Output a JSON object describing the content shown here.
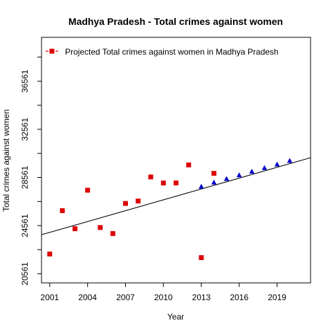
{
  "chart_data": {
    "type": "scatter",
    "title": "Madhya Pradesh  -  Total crimes against women",
    "xlabel": "Year",
    "ylabel": "Total crimes against women",
    "xlim": [
      2000.35,
      2021.65
    ],
    "ylim": [
      19800,
      40200
    ],
    "x_ticks": [
      2001,
      2004,
      2007,
      2010,
      2013,
      2016,
      2019
    ],
    "y_ticks": [
      20561,
      24561,
      28561,
      32561,
      36561
    ],
    "legend": {
      "position": "top-left",
      "entries": [
        "Projected  Total crimes against women  in  Madhya Pradesh"
      ]
    },
    "colors": {
      "observed": "#dd0000",
      "projected": "#0000cc",
      "trend": "#000000"
    },
    "series": [
      {
        "name": "Projected  Total crimes against women  in  Madhya Pradesh",
        "marker": "square",
        "x": [
          2001,
          2002,
          2003,
          2004,
          2005,
          2006,
          2007,
          2008,
          2009,
          2010,
          2011,
          2012,
          2013,
          2014
        ],
        "y": [
          22200,
          25800,
          24300,
          27500,
          24400,
          23900,
          26400,
          26600,
          28600,
          28100,
          28100,
          29600,
          21900,
          28900
        ]
      },
      {
        "marker": "triangle",
        "x": [
          2013,
          2014,
          2015,
          2016,
          2017,
          2018,
          2019,
          2020
        ],
        "y": [
          27800,
          28150,
          28450,
          28750,
          29050,
          29350,
          29650,
          29950
        ]
      }
    ],
    "trendline": {
      "x": [
        2000.35,
        2021.65
      ],
      "y": [
        23800,
        30200
      ]
    }
  }
}
